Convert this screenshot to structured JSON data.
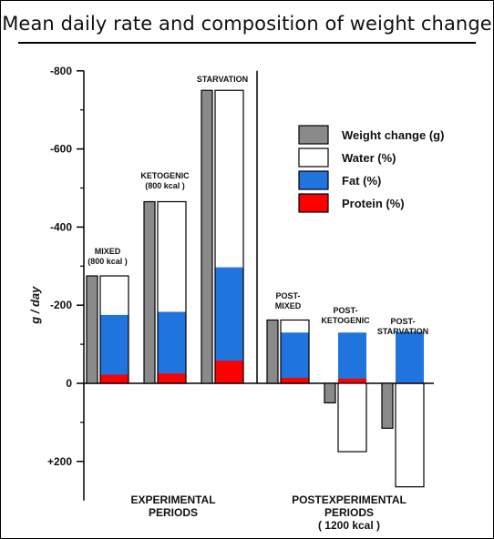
{
  "title": "Mean daily rate and composition of weight change",
  "colors": {
    "weight": "#8a8a8a",
    "water": "#ffffff",
    "fat": "#1f74dd",
    "protein": "#ff0000"
  },
  "chart_data": {
    "type": "bar",
    "ylabel": "g / day",
    "ylim": [
      -800,
      300
    ],
    "y_inverted": true,
    "yticks": [
      {
        "value": -800,
        "label": "-800"
      },
      {
        "value": -600,
        "label": "-600"
      },
      {
        "value": -400,
        "label": "-400"
      },
      {
        "value": -200,
        "label": "-200"
      },
      {
        "value": 0,
        "label": "0"
      },
      {
        "value": 200,
        "label": "+200"
      }
    ],
    "legend": [
      {
        "key": "weight",
        "label": "Weight change (g)"
      },
      {
        "key": "water",
        "label": "Water (%)"
      },
      {
        "key": "fat",
        "label": "Fat (%)"
      },
      {
        "key": "protein",
        "label": "Protein (%)"
      }
    ],
    "groups": [
      {
        "label_lines": [
          "MIXED",
          "(800 kcal )"
        ],
        "weight": -275,
        "protein": -22,
        "fat": -175,
        "water": -275
      },
      {
        "label_lines": [
          "KETOGENIC",
          "(800 kcal )"
        ],
        "weight": -465,
        "protein": -25,
        "fat": -183,
        "water": -465
      },
      {
        "label_lines": [
          "STARVATION"
        ],
        "weight": -750,
        "protein": -58,
        "fat": -297,
        "water": -750
      },
      {
        "label_lines": [
          "POST-",
          "MIXED"
        ],
        "weight": -162,
        "protein": -14,
        "fat": -130,
        "water": -162
      },
      {
        "label_lines": [
          "POST-",
          "KETOGENIC"
        ],
        "weight": 50,
        "protein": -12,
        "fat": -130,
        "water": 175
      },
      {
        "label_lines": [
          "POST-",
          "STARVATION"
        ],
        "weight": 115,
        "protein": 2,
        "fat": -132,
        "water": 265
      }
    ],
    "period_labels": [
      {
        "lines": [
          "EXPERIMENTAL",
          "PERIODS"
        ]
      },
      {
        "lines": [
          "POSTEXPERIMENTAL",
          "PERIODS",
          "( 1200 kcal )"
        ]
      }
    ]
  }
}
